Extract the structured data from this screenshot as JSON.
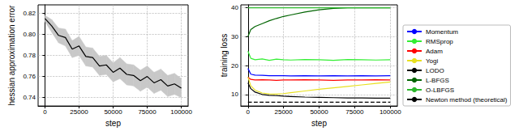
{
  "chart_data": [
    {
      "type": "line",
      "ylabel": "hessian approximation error",
      "xlabel": "step",
      "grid": true,
      "xlim": [
        -5000,
        105000
      ],
      "xticks": [
        0,
        25000,
        50000,
        75000,
        100000
      ],
      "ylim": [
        0.732,
        0.828
      ],
      "yticks": [
        0.74,
        0.76,
        0.78,
        {
          "value": 0.8,
          "label": "0.80"
        },
        0.82
      ],
      "x": [
        0,
        5000,
        10000,
        15000,
        20000,
        25000,
        30000,
        35000,
        40000,
        45000,
        50000,
        55000,
        60000,
        65000,
        70000,
        75000,
        80000,
        85000,
        90000,
        95000,
        100000
      ],
      "series": [
        {
          "color": "#000000",
          "values": [
            0.815,
            0.808,
            0.799,
            0.797,
            0.786,
            0.789,
            0.779,
            0.778,
            0.77,
            0.771,
            0.764,
            0.768,
            0.762,
            0.761,
            0.756,
            0.76,
            0.754,
            0.757,
            0.751,
            0.753,
            0.749
          ],
          "lower": [
            0.812,
            0.802,
            0.792,
            0.789,
            0.778,
            0.78,
            0.77,
            0.769,
            0.761,
            0.762,
            0.755,
            0.758,
            0.752,
            0.751,
            0.746,
            0.75,
            0.744,
            0.747,
            0.741,
            0.743,
            0.74
          ],
          "upper": [
            0.818,
            0.814,
            0.806,
            0.805,
            0.794,
            0.798,
            0.788,
            0.787,
            0.779,
            0.78,
            0.773,
            0.778,
            0.772,
            0.771,
            0.766,
            0.77,
            0.764,
            0.767,
            0.761,
            0.763,
            0.758
          ]
        }
      ]
    },
    {
      "type": "line",
      "ylabel": "training loss",
      "xlabel": "step",
      "grid": true,
      "legend": "right",
      "xlim": [
        -5000,
        105000
      ],
      "xticks": [
        0,
        25000,
        50000,
        75000,
        100000
      ],
      "ylim": [
        6,
        41
      ],
      "yticks": [
        10,
        20,
        30,
        40
      ],
      "x": [
        0,
        2000,
        5000,
        10000,
        15000,
        20000,
        25000,
        30000,
        40000,
        50000,
        60000,
        70000,
        80000,
        90000,
        100000
      ],
      "series": [
        {
          "name": "Momentum",
          "color": "#0000ff",
          "values": [
            19,
            17,
            16.7,
            16.6,
            16.5,
            16.5,
            16.5,
            16.4,
            16.5,
            16.4,
            16.5,
            16.4,
            16.5,
            16.4,
            16.5
          ]
        },
        {
          "name": "RMSprop",
          "color": "#33ee33",
          "values": [
            25,
            22.5,
            22,
            22.3,
            21.8,
            22.2,
            22,
            21.9,
            22.1,
            22,
            21.8,
            22.1,
            22,
            21.9,
            22
          ]
        },
        {
          "name": "Adam",
          "color": "#ff0000",
          "values": [
            16,
            15.2,
            15,
            15.1,
            15,
            14.9,
            15,
            15,
            15.1,
            15,
            14.9,
            15,
            15,
            15.1,
            15
          ]
        },
        {
          "name": "Yogi",
          "color": "#e8e020",
          "values": [
            16,
            13,
            11.5,
            10.5,
            10.2,
            10.1,
            10.3,
            10.6,
            11.2,
            11.8,
            12.3,
            12.8,
            13.3,
            13.8,
            14.3
          ]
        },
        {
          "name": "LODO",
          "color": "#000000",
          "values": [
            14,
            12,
            10.8,
            10,
            9.7,
            9.6,
            9.4,
            9.3,
            9.1,
            9,
            8.9,
            8.8,
            8.8,
            8.7,
            8.7
          ]
        },
        {
          "name": "L-BFGS",
          "color": "#006400",
          "values": [
            30,
            32.5,
            33.5,
            34.5,
            35.5,
            36.3,
            37,
            37.5,
            38.5,
            39.3,
            39.8,
            40,
            40,
            40,
            40
          ]
        },
        {
          "name": "O-LBFGS",
          "color": "#2db82d",
          "values": [
            40,
            40,
            40,
            40,
            40,
            40,
            40,
            40,
            40,
            40,
            40,
            40,
            40,
            40,
            40
          ]
        },
        {
          "name": "Newton method (theoretical)",
          "color": "#000000",
          "line_style": "dashed",
          "values": [
            7.3,
            7.3,
            7.3,
            7.3,
            7.3,
            7.3,
            7.3,
            7.3,
            7.3,
            7.3,
            7.3,
            7.3,
            7.3,
            7.3,
            7.3
          ]
        }
      ]
    }
  ]
}
